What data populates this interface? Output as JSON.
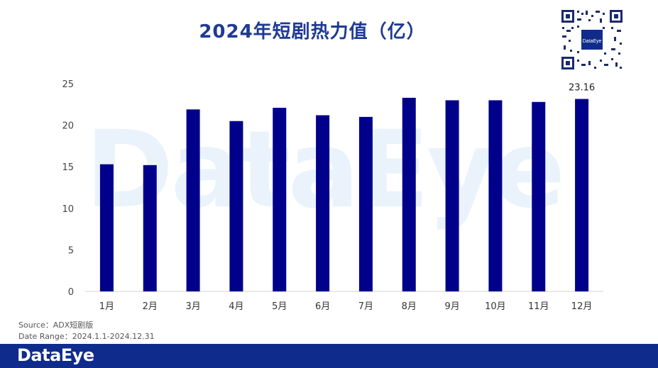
{
  "header": {
    "title": "2024年短剧热力值（亿）"
  },
  "qr_logo_text": "DataEye",
  "watermark_text": "DataEye",
  "source": {
    "source_line": "Source：ADX短剧版",
    "date_line": "Date Range：2024.1.1-2024.12.31"
  },
  "footer": {
    "brand": "DataEye"
  },
  "colors": {
    "bar": "#00008b",
    "title": "#1f3a93",
    "footer": "#0f2c8c",
    "watermark": "#eaf3fb"
  },
  "chart_data": {
    "type": "bar",
    "title": "2024年短剧热力值（亿）",
    "xlabel": "",
    "ylabel": "",
    "categories": [
      "1月",
      "2月",
      "3月",
      "4月",
      "5月",
      "6月",
      "7月",
      "8月",
      "9月",
      "10月",
      "11月",
      "12月"
    ],
    "values": [
      15.3,
      15.2,
      21.9,
      20.5,
      22.1,
      21.2,
      21.0,
      23.3,
      23.0,
      23.0,
      22.8,
      23.16
    ],
    "ylim": [
      0,
      25
    ],
    "yticks": [
      0,
      5,
      10,
      15,
      20,
      25
    ],
    "data_labels": [
      {
        "index": 11,
        "text": "23.16"
      }
    ],
    "grid": false,
    "legend": "none"
  }
}
